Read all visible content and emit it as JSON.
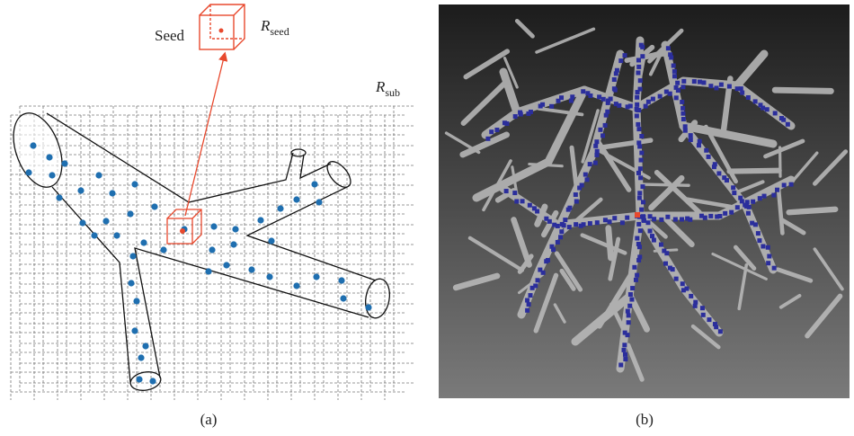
{
  "panel_a": {
    "seed_label": "Seed",
    "seed_region": {
      "symbol": "R",
      "subscript": "seed"
    },
    "sub_region": {
      "symbol": "R",
      "subscript": "sub"
    },
    "caption": "(a)"
  },
  "panel_b": {
    "caption": "(b)"
  }
}
